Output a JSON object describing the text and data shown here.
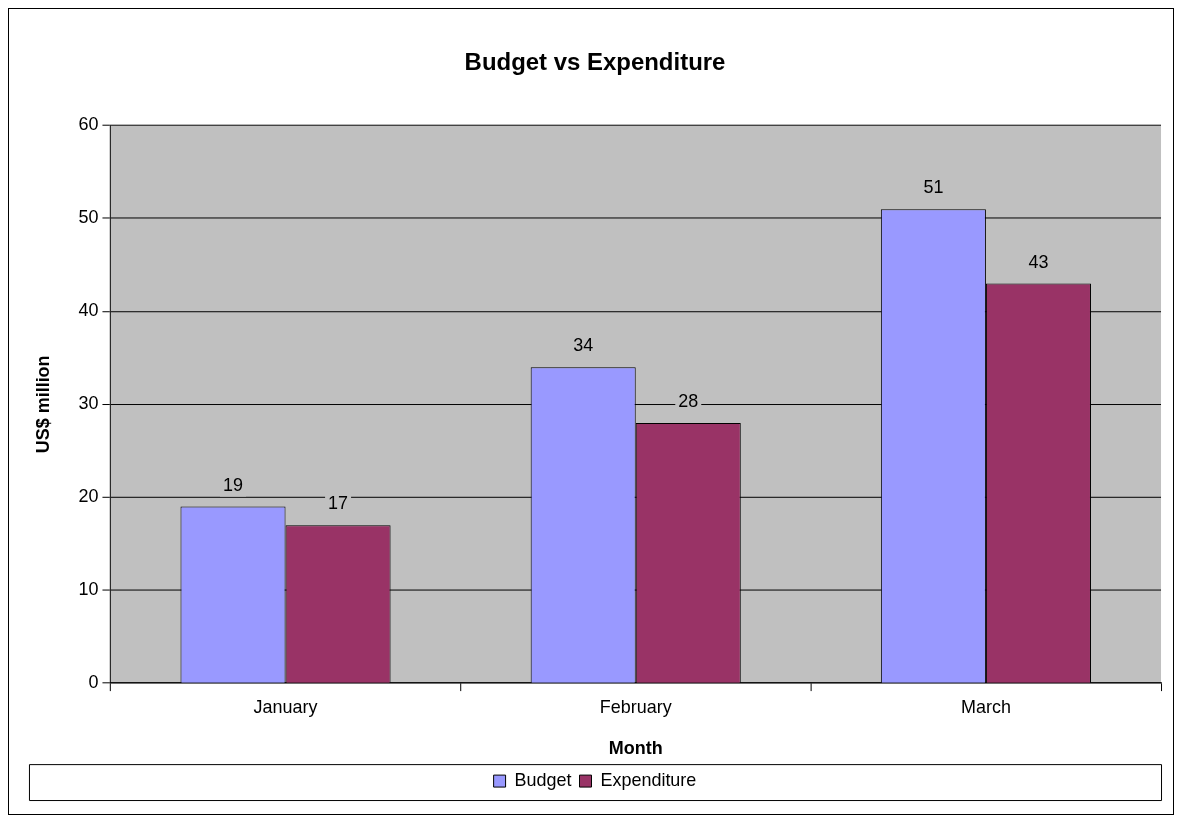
{
  "chart_data": {
    "type": "bar",
    "title": "Budget vs Expenditure",
    "xlabel": "Month",
    "ylabel": "US$ million",
    "categories": [
      "January",
      "February",
      "March"
    ],
    "series": [
      {
        "name": "Budget",
        "color": "#9999ff",
        "values": [
          19,
          34,
          51
        ]
      },
      {
        "name": "Expenditure",
        "color": "#993366",
        "values": [
          17,
          28,
          43
        ]
      }
    ],
    "ylim": [
      0,
      60
    ],
    "yticks": [
      0,
      10,
      20,
      30,
      40,
      50,
      60
    ],
    "grid": "y",
    "legend": "bottom",
    "data_labels": true
  }
}
